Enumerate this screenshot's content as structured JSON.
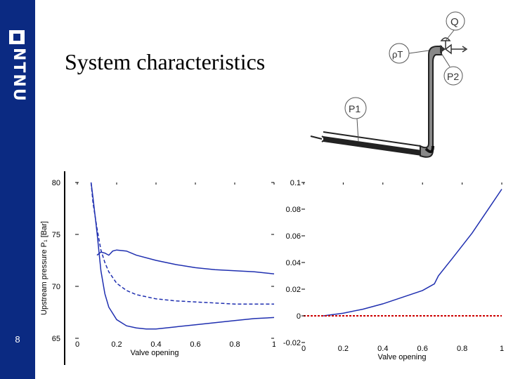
{
  "slide": {
    "title": "System characteristics",
    "page_number": "8",
    "colors": {
      "sidebar": "#0b2a82",
      "curve": "#1f2fb0",
      "reference": "#cc0000"
    }
  },
  "logo": {
    "text": "NTNU"
  },
  "diagram": {
    "labels": {
      "flow": "Q",
      "density": "ρT",
      "p1": "P1",
      "p2": "P2"
    }
  },
  "chart_data": [
    {
      "type": "line",
      "title": "",
      "xlabel": "Valve opening",
      "ylabel": "Upstream pressure  P₁ [Bar]",
      "xlim": [
        0,
        1
      ],
      "ylim": [
        65,
        80
      ],
      "x_ticks": [
        "0",
        "0.2",
        "0.4",
        "0.6",
        "0.8",
        "1"
      ],
      "y_ticks": [
        "65",
        "70",
        "75",
        "80"
      ],
      "series": [
        {
          "style": "solid",
          "points": [
            [
              0.1,
              73.0
            ],
            [
              0.12,
              73.3
            ],
            [
              0.14,
              73.2
            ],
            [
              0.16,
              73.0
            ],
            [
              0.18,
              73.4
            ],
            [
              0.2,
              73.5
            ],
            [
              0.25,
              73.4
            ],
            [
              0.3,
              73.0
            ],
            [
              0.4,
              72.5
            ],
            [
              0.5,
              72.1
            ],
            [
              0.6,
              71.8
            ],
            [
              0.7,
              71.6
            ],
            [
              0.8,
              71.5
            ],
            [
              0.9,
              71.4
            ],
            [
              1.0,
              71.2
            ]
          ]
        },
        {
          "style": "dashed",
          "points": [
            [
              0.07,
              80.0
            ],
            [
              0.08,
              78.0
            ],
            [
              0.1,
              75.6
            ],
            [
              0.12,
              73.5
            ],
            [
              0.14,
              72.3
            ],
            [
              0.16,
              71.4
            ],
            [
              0.2,
              70.3
            ],
            [
              0.25,
              69.6
            ],
            [
              0.3,
              69.2
            ],
            [
              0.4,
              68.8
            ],
            [
              0.5,
              68.6
            ],
            [
              0.6,
              68.5
            ],
            [
              0.7,
              68.4
            ],
            [
              0.8,
              68.3
            ],
            [
              0.9,
              68.3
            ],
            [
              1.0,
              68.3
            ]
          ]
        },
        {
          "style": "solid",
          "points": [
            [
              0.07,
              80.0
            ],
            [
              0.08,
              78.5
            ],
            [
              0.1,
              75.2
            ],
            [
              0.12,
              71.5
            ],
            [
              0.14,
              69.3
            ],
            [
              0.16,
              68.0
            ],
            [
              0.2,
              66.8
            ],
            [
              0.25,
              66.2
            ],
            [
              0.3,
              66.0
            ],
            [
              0.35,
              65.9
            ],
            [
              0.4,
              65.9
            ],
            [
              0.5,
              66.1
            ],
            [
              0.6,
              66.3
            ],
            [
              0.7,
              66.5
            ],
            [
              0.8,
              66.7
            ],
            [
              0.9,
              66.9
            ],
            [
              1.0,
              67.0
            ]
          ]
        }
      ]
    },
    {
      "type": "line",
      "title": "",
      "xlabel": "Valve opening",
      "ylabel": "",
      "xlim": [
        0,
        1
      ],
      "ylim": [
        -0.02,
        0.1
      ],
      "x_ticks": [
        "0",
        "0.2",
        "0.4",
        "0.6",
        "0.8",
        "1"
      ],
      "y_ticks": [
        "-0.02",
        "0",
        "0.02",
        "0.04",
        "0.06",
        "0.08",
        "0.1"
      ],
      "series": [
        {
          "style": "solid",
          "points": [
            [
              0.1,
              0.0
            ],
            [
              0.15,
              0.001
            ],
            [
              0.2,
              0.002
            ],
            [
              0.3,
              0.005
            ],
            [
              0.4,
              0.009
            ],
            [
              0.5,
              0.014
            ],
            [
              0.6,
              0.019
            ],
            [
              0.66,
              0.024
            ],
            [
              0.68,
              0.03
            ],
            [
              0.75,
              0.043
            ],
            [
              0.85,
              0.062
            ],
            [
              0.95,
              0.084
            ],
            [
              1.0,
              0.095
            ]
          ]
        },
        {
          "style": "dotted-red",
          "points": [
            [
              0,
              0
            ],
            [
              1,
              0
            ]
          ]
        }
      ]
    }
  ]
}
